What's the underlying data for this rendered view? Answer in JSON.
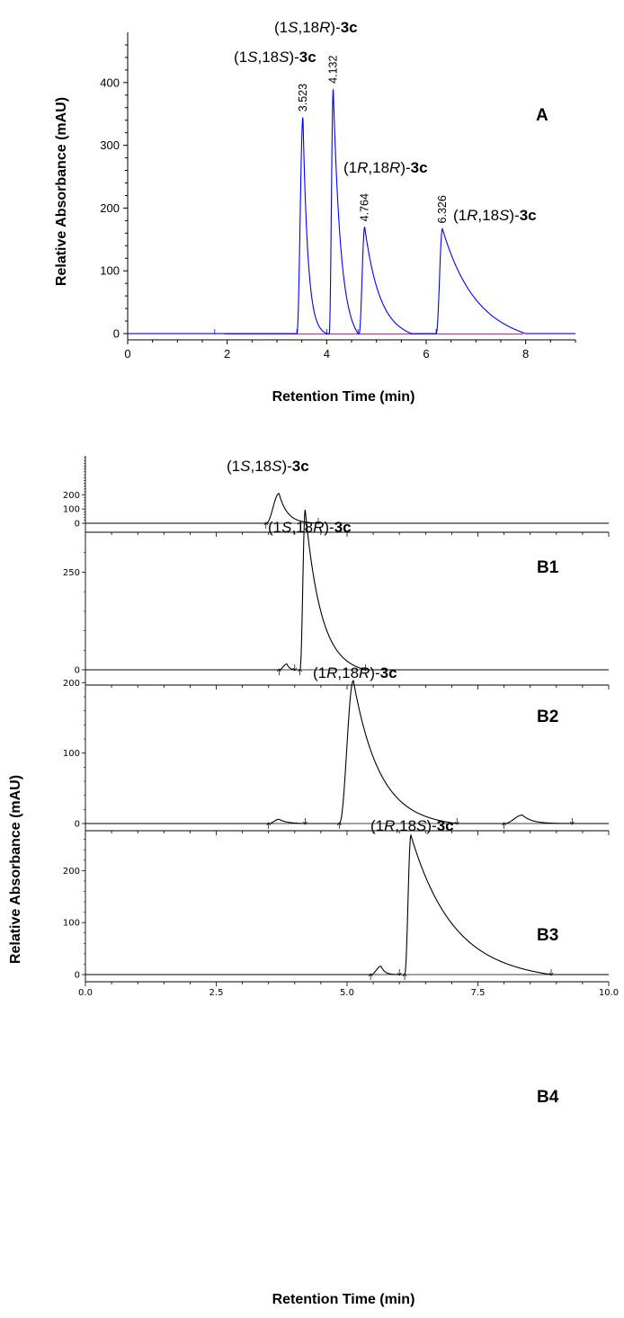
{
  "chart_data": [
    {
      "panel": "A",
      "type": "line",
      "xlabel": "Retention Time (min)",
      "ylabel": "Relative Absorbance (mAU)",
      "xlim": [
        0,
        9
      ],
      "ylim": [
        -10,
        480
      ],
      "x_ticks": [
        "0",
        "2",
        "4",
        "6",
        "8"
      ],
      "y_ticks": [
        "0",
        "100",
        "200",
        "300",
        "400"
      ],
      "grid": false,
      "line_color": "#0000ff",
      "baseline_color": "#ff00ff",
      "peaks": [
        {
          "rt": 3.523,
          "rt_label": "3.523",
          "height": 345,
          "label": "(1S,18S)-3c",
          "start": 3.4,
          "end": 4.0,
          "tau": 0.1
        },
        {
          "rt": 4.132,
          "rt_label": "4.132",
          "height": 390,
          "label": "(1S,18R)-3c",
          "start": 4.05,
          "end": 4.63,
          "tau": 0.15
        },
        {
          "rt": 4.764,
          "rt_label": "4.764",
          "height": 170,
          "label": "(1R,18R)-3c",
          "start": 4.65,
          "end": 5.7,
          "tau": 0.3
        },
        {
          "rt": 6.326,
          "rt_label": "6.326",
          "height": 167,
          "label": "(1R,18S)-3c",
          "start": 6.2,
          "end": 8.0,
          "tau": 0.65
        }
      ]
    },
    {
      "panel": "B1",
      "type": "line",
      "xlim": [
        0,
        10
      ],
      "y_ticks": [
        "0",
        "100",
        "200"
      ],
      "line_color": "#000000",
      "peaks": [
        {
          "rt": 3.7,
          "height": 208,
          "label": "(1S,18S)-3c",
          "start": 3.45,
          "end": 4.45,
          "tau": 0.16
        }
      ]
    },
    {
      "panel": "B2",
      "type": "line",
      "xlim": [
        0,
        10
      ],
      "y_ticks": [
        "0",
        "250"
      ],
      "line_color": "#000000",
      "peaks": [
        {
          "rt": 3.85,
          "height": 15,
          "start": 3.7,
          "end": 4.0,
          "tau": 0.05
        },
        {
          "rt": 4.2,
          "height": 410,
          "label": "(1S,18R)-3c",
          "start": 4.1,
          "end": 5.35,
          "tau": 0.3
        }
      ]
    },
    {
      "panel": "B3",
      "type": "line",
      "xlim": [
        0,
        10
      ],
      "y_ticks": [
        "0",
        "100",
        "200"
      ],
      "line_color": "#000000",
      "peaks": [
        {
          "rt": 3.7,
          "height": 6,
          "start": 3.5,
          "end": 4.2,
          "tau": 0.15
        },
        {
          "rt": 5.12,
          "height": 203,
          "label": "(1R,18R)-3c",
          "start": 4.85,
          "end": 7.1,
          "tau": 0.5
        },
        {
          "rt": 8.35,
          "height": 12,
          "start": 8.0,
          "end": 9.3,
          "tau": 0.18
        }
      ]
    },
    {
      "panel": "B4",
      "type": "line",
      "xlabel": "Retention Time (min)",
      "xlim": [
        0,
        10
      ],
      "x_ticks": [
        "0.0",
        "2.5",
        "5.0",
        "7.5",
        "10.0"
      ],
      "y_ticks": [
        "0",
        "100",
        "200"
      ],
      "line_color": "#000000",
      "peaks": [
        {
          "rt": 5.65,
          "height": 16,
          "start": 5.45,
          "end": 6.0,
          "tau": 0.07
        },
        {
          "rt": 6.22,
          "height": 268,
          "label": "(1R,18S)-3c",
          "start": 6.1,
          "end": 8.9,
          "tau": 0.8
        }
      ]
    }
  ],
  "ylabel_B": "Relative Absorbance (mAU)"
}
